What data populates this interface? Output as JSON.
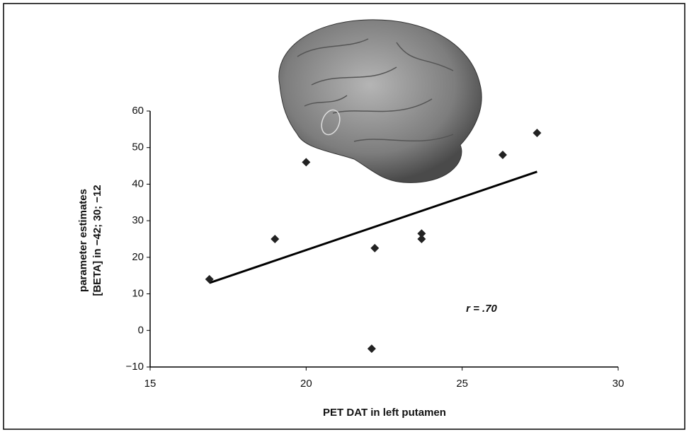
{
  "chart_data": {
    "type": "scatter",
    "x_label": "PET DAT in left putamen",
    "y_label": [
      "parameter estimates",
      "[BETA] in −42; 30; −12"
    ],
    "annotation": "r = .70",
    "x": [
      16.9,
      19.0,
      20.0,
      22.1,
      22.2,
      23.7,
      23.7,
      26.3,
      27.4
    ],
    "values": [
      14,
      25,
      46,
      -5,
      22.5,
      26.5,
      25,
      48,
      54
    ],
    "color": "#222222",
    "trendline": {
      "x": [
        16.9,
        27.4
      ],
      "values": [
        13,
        43.4
      ]
    },
    "xlim": [
      15,
      30
    ],
    "xticks": [
      15,
      20,
      25,
      30
    ],
    "ylim": [
      -10,
      60
    ],
    "yticks": [
      {
        "value": -10,
        "label": "−10"
      },
      0,
      10,
      20,
      30,
      40,
      50,
      60
    ]
  }
}
